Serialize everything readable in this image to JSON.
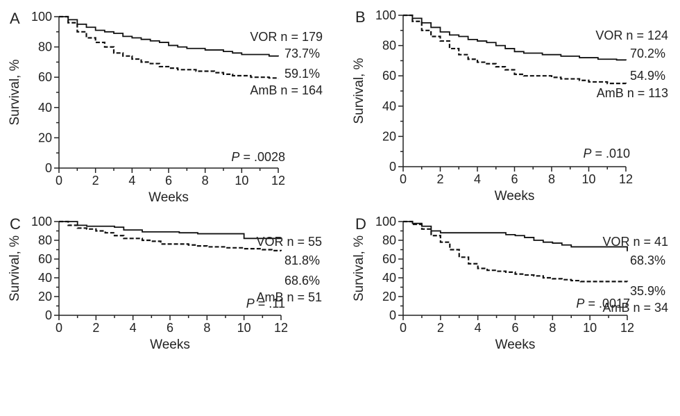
{
  "chart_data": [
    {
      "type": "line",
      "panel": "A",
      "xlabel": "Weeks",
      "ylabel": "Survival, %",
      "xlim": [
        0,
        12
      ],
      "ylim": [
        0,
        100
      ],
      "xticks": [
        "0",
        "2",
        "4",
        "6",
        "8",
        "10",
        "12"
      ],
      "yticks": [
        "0",
        "20",
        "40",
        "60",
        "80",
        "100"
      ],
      "p_italic": "P",
      "p_text": " = .0028",
      "series": [
        {
          "style": "solid",
          "label": "VOR n = 179",
          "end_label": "73.7%",
          "x": [
            0,
            0.5,
            1,
            1.5,
            2,
            2.5,
            3,
            3.5,
            4,
            4.5,
            5,
            5.5,
            6,
            6.5,
            7,
            7.5,
            8,
            8.5,
            9,
            9.5,
            10,
            10.5,
            11,
            11.5,
            12
          ],
          "y": [
            100,
            98,
            95,
            93,
            91,
            90,
            89,
            87,
            86,
            85,
            84,
            83,
            81,
            80,
            79,
            79,
            78,
            78,
            77,
            76,
            75,
            75,
            75,
            74,
            73.7
          ]
        },
        {
          "style": "dashed",
          "label": "AmB n = 164",
          "end_label": "59.1%",
          "x": [
            0,
            0.5,
            1,
            1.5,
            2,
            2.5,
            3,
            3.5,
            4,
            4.5,
            5,
            5.5,
            6,
            6.5,
            7,
            7.5,
            8,
            8.5,
            9,
            9.5,
            10,
            10.5,
            11,
            11.5,
            12
          ],
          "y": [
            100,
            96,
            90,
            86,
            83,
            80,
            76,
            74,
            72,
            70,
            69,
            67,
            66,
            65,
            65,
            64,
            64,
            63,
            62,
            61,
            61,
            60,
            60,
            59.5,
            59.1
          ]
        }
      ]
    },
    {
      "type": "line",
      "panel": "B",
      "xlabel": "Weeks",
      "ylabel": "Survival, %",
      "xlim": [
        0,
        12
      ],
      "ylim": [
        0,
        100
      ],
      "xticks": [
        "0",
        "2",
        "4",
        "6",
        "8",
        "10",
        "12"
      ],
      "yticks": [
        "0",
        "20",
        "40",
        "60",
        "80",
        "100"
      ],
      "p_italic": "P",
      "p_text": " = .010",
      "series": [
        {
          "style": "solid",
          "label": "VOR n = 124",
          "end_label": "70.2%",
          "x": [
            0,
            0.5,
            1,
            1.5,
            2,
            2.5,
            3,
            3.5,
            4,
            4.5,
            5,
            5.5,
            6,
            6.5,
            7,
            7.5,
            8,
            8.5,
            9,
            9.5,
            10,
            10.5,
            11,
            11.5,
            12
          ],
          "y": [
            100,
            98,
            95,
            92,
            89,
            87,
            86,
            84,
            83,
            82,
            80,
            78,
            76,
            75,
            75,
            74,
            74,
            73,
            73,
            72,
            72,
            71,
            71,
            70.5,
            70.2
          ]
        },
        {
          "style": "dashed",
          "label": "AmB n = 113",
          "end_label": "54.9%",
          "x": [
            0,
            0.5,
            1,
            1.5,
            2,
            2.5,
            3,
            3.5,
            4,
            4.5,
            5,
            5.5,
            6,
            6.5,
            7,
            7.5,
            8,
            8.5,
            9,
            9.5,
            10,
            10.5,
            11,
            11.5,
            12
          ],
          "y": [
            100,
            96,
            90,
            86,
            83,
            78,
            74,
            71,
            69,
            68,
            66,
            64,
            61,
            60,
            60,
            60,
            59,
            58,
            58,
            57,
            56,
            56,
            55,
            55,
            54.9
          ]
        }
      ]
    },
    {
      "type": "line",
      "panel": "C",
      "xlabel": "Weeks",
      "ylabel": "Survival, %",
      "xlim": [
        0,
        12
      ],
      "ylim": [
        0,
        100
      ],
      "xticks": [
        "0",
        "2",
        "4",
        "6",
        "8",
        "10",
        "12"
      ],
      "yticks": [
        "0",
        "20",
        "40",
        "60",
        "80",
        "100"
      ],
      "p_italic": "P",
      "p_text": " = .11",
      "series": [
        {
          "style": "solid",
          "label": "VOR n = 55",
          "end_label": "81.8%",
          "x": [
            0,
            0.5,
            1,
            1.5,
            2,
            2.5,
            3,
            3.5,
            4,
            4.5,
            5,
            5.5,
            6,
            6.5,
            7,
            7.5,
            8,
            8.5,
            9,
            9.5,
            10,
            10.5,
            11,
            11.5,
            12
          ],
          "y": [
            100,
            100,
            96,
            95,
            95,
            95,
            94,
            91,
            91,
            89,
            89,
            89,
            89,
            88,
            88,
            87,
            87,
            87,
            87,
            87,
            82,
            82,
            82,
            82,
            81.8
          ]
        },
        {
          "style": "dashed",
          "label": "AmB n = 51",
          "end_label": "68.6%",
          "x": [
            0,
            0.5,
            1,
            1.5,
            2,
            2.5,
            3,
            3.5,
            4,
            4.5,
            5,
            5.5,
            6,
            6.5,
            7,
            7.5,
            8,
            8.5,
            9,
            9.5,
            10,
            10.5,
            11,
            11.5,
            12
          ],
          "y": [
            100,
            96,
            93,
            92,
            90,
            88,
            85,
            82,
            82,
            80,
            79,
            76,
            76,
            76,
            75,
            74,
            73,
            73,
            72,
            72,
            71,
            71,
            70,
            69,
            68.6
          ]
        }
      ]
    },
    {
      "type": "line",
      "panel": "D",
      "xlabel": "Weeks",
      "ylabel": "Survival, %",
      "xlim": [
        0,
        12
      ],
      "ylim": [
        0,
        100
      ],
      "xticks": [
        "0",
        "2",
        "4",
        "6",
        "8",
        "10",
        "12"
      ],
      "yticks": [
        "0",
        "20",
        "40",
        "60",
        "80",
        "100"
      ],
      "p_italic": "P",
      "p_text": " = .0017",
      "series": [
        {
          "style": "solid",
          "label": "VOR n = 41",
          "end_label": "68.3%",
          "x": [
            0,
            0.5,
            1,
            1.5,
            2,
            2.5,
            3,
            3.5,
            4,
            4.5,
            5,
            5.5,
            6,
            6.5,
            7,
            7.5,
            8,
            8.5,
            9,
            9.5,
            10,
            10.5,
            11,
            11.5,
            12
          ],
          "y": [
            100,
            98,
            95,
            90,
            88,
            88,
            88,
            88,
            88,
            88,
            88,
            86,
            85,
            83,
            80,
            78,
            77,
            75,
            73,
            73,
            73,
            73,
            73,
            73,
            68.3
          ]
        },
        {
          "style": "dashed",
          "label": "AmB n = 34",
          "end_label": "35.9%",
          "x": [
            0,
            0.5,
            1,
            1.5,
            2,
            2.5,
            3,
            3.5,
            4,
            4.5,
            5,
            5.5,
            6,
            6.5,
            7,
            7.5,
            8,
            8.5,
            9,
            9.5,
            10,
            10.5,
            11,
            11.5,
            12
          ],
          "y": [
            100,
            97,
            92,
            85,
            78,
            70,
            62,
            55,
            50,
            48,
            47,
            46,
            44,
            43,
            42,
            40,
            39,
            38,
            37,
            36,
            36,
            36,
            36,
            36,
            35.9
          ]
        }
      ]
    }
  ]
}
